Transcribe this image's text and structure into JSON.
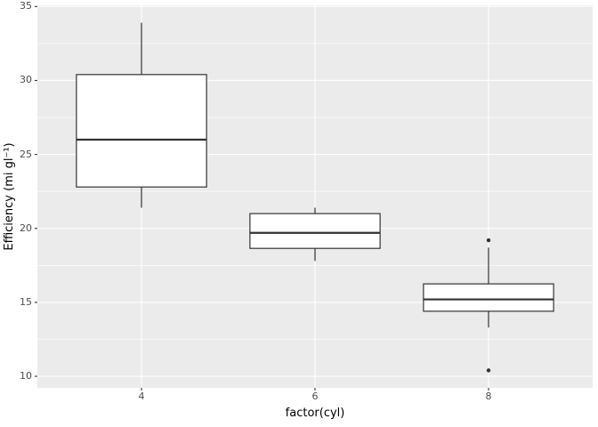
{
  "chart_data": {
    "type": "boxplot",
    "title": "",
    "xlabel": "factor(cyl)",
    "ylabel": "Efficiency (mi gl⁻¹)",
    "x_categories": [
      "4",
      "6",
      "8"
    ],
    "yticks": [
      10,
      15,
      20,
      25,
      30,
      35
    ],
    "yticks_minor": [
      12.5,
      17.5,
      22.5,
      27.5,
      32.5
    ],
    "ylim": [
      9.22,
      35.08
    ],
    "legend": "none",
    "grid": "horizontal major+minor white lines, vertical major white lines on grey panel",
    "boxes": [
      {
        "category": "4",
        "lower_whisker": 21.4,
        "q1": 22.8,
        "median": 26.0,
        "q3": 30.4,
        "upper_whisker": 33.9,
        "outliers": []
      },
      {
        "category": "6",
        "lower_whisker": 17.8,
        "q1": 18.65,
        "median": 19.7,
        "q3": 21.0,
        "upper_whisker": 21.4,
        "outliers": []
      },
      {
        "category": "8",
        "lower_whisker": 13.3,
        "q1": 14.4,
        "median": 15.2,
        "q3": 16.25,
        "upper_whisker": 18.7,
        "outliers": [
          10.4,
          19.2
        ]
      }
    ],
    "colors": {
      "figure_background": "#ffffff",
      "panel_background": "#ebebeb",
      "grid": "#ffffff",
      "box_fill": "#ffffff",
      "box_stroke": "#333333",
      "outlier": "#333333",
      "tick_mark": "#333333",
      "tick_label": "#4d4d4d",
      "axis_title": "#000000"
    }
  }
}
